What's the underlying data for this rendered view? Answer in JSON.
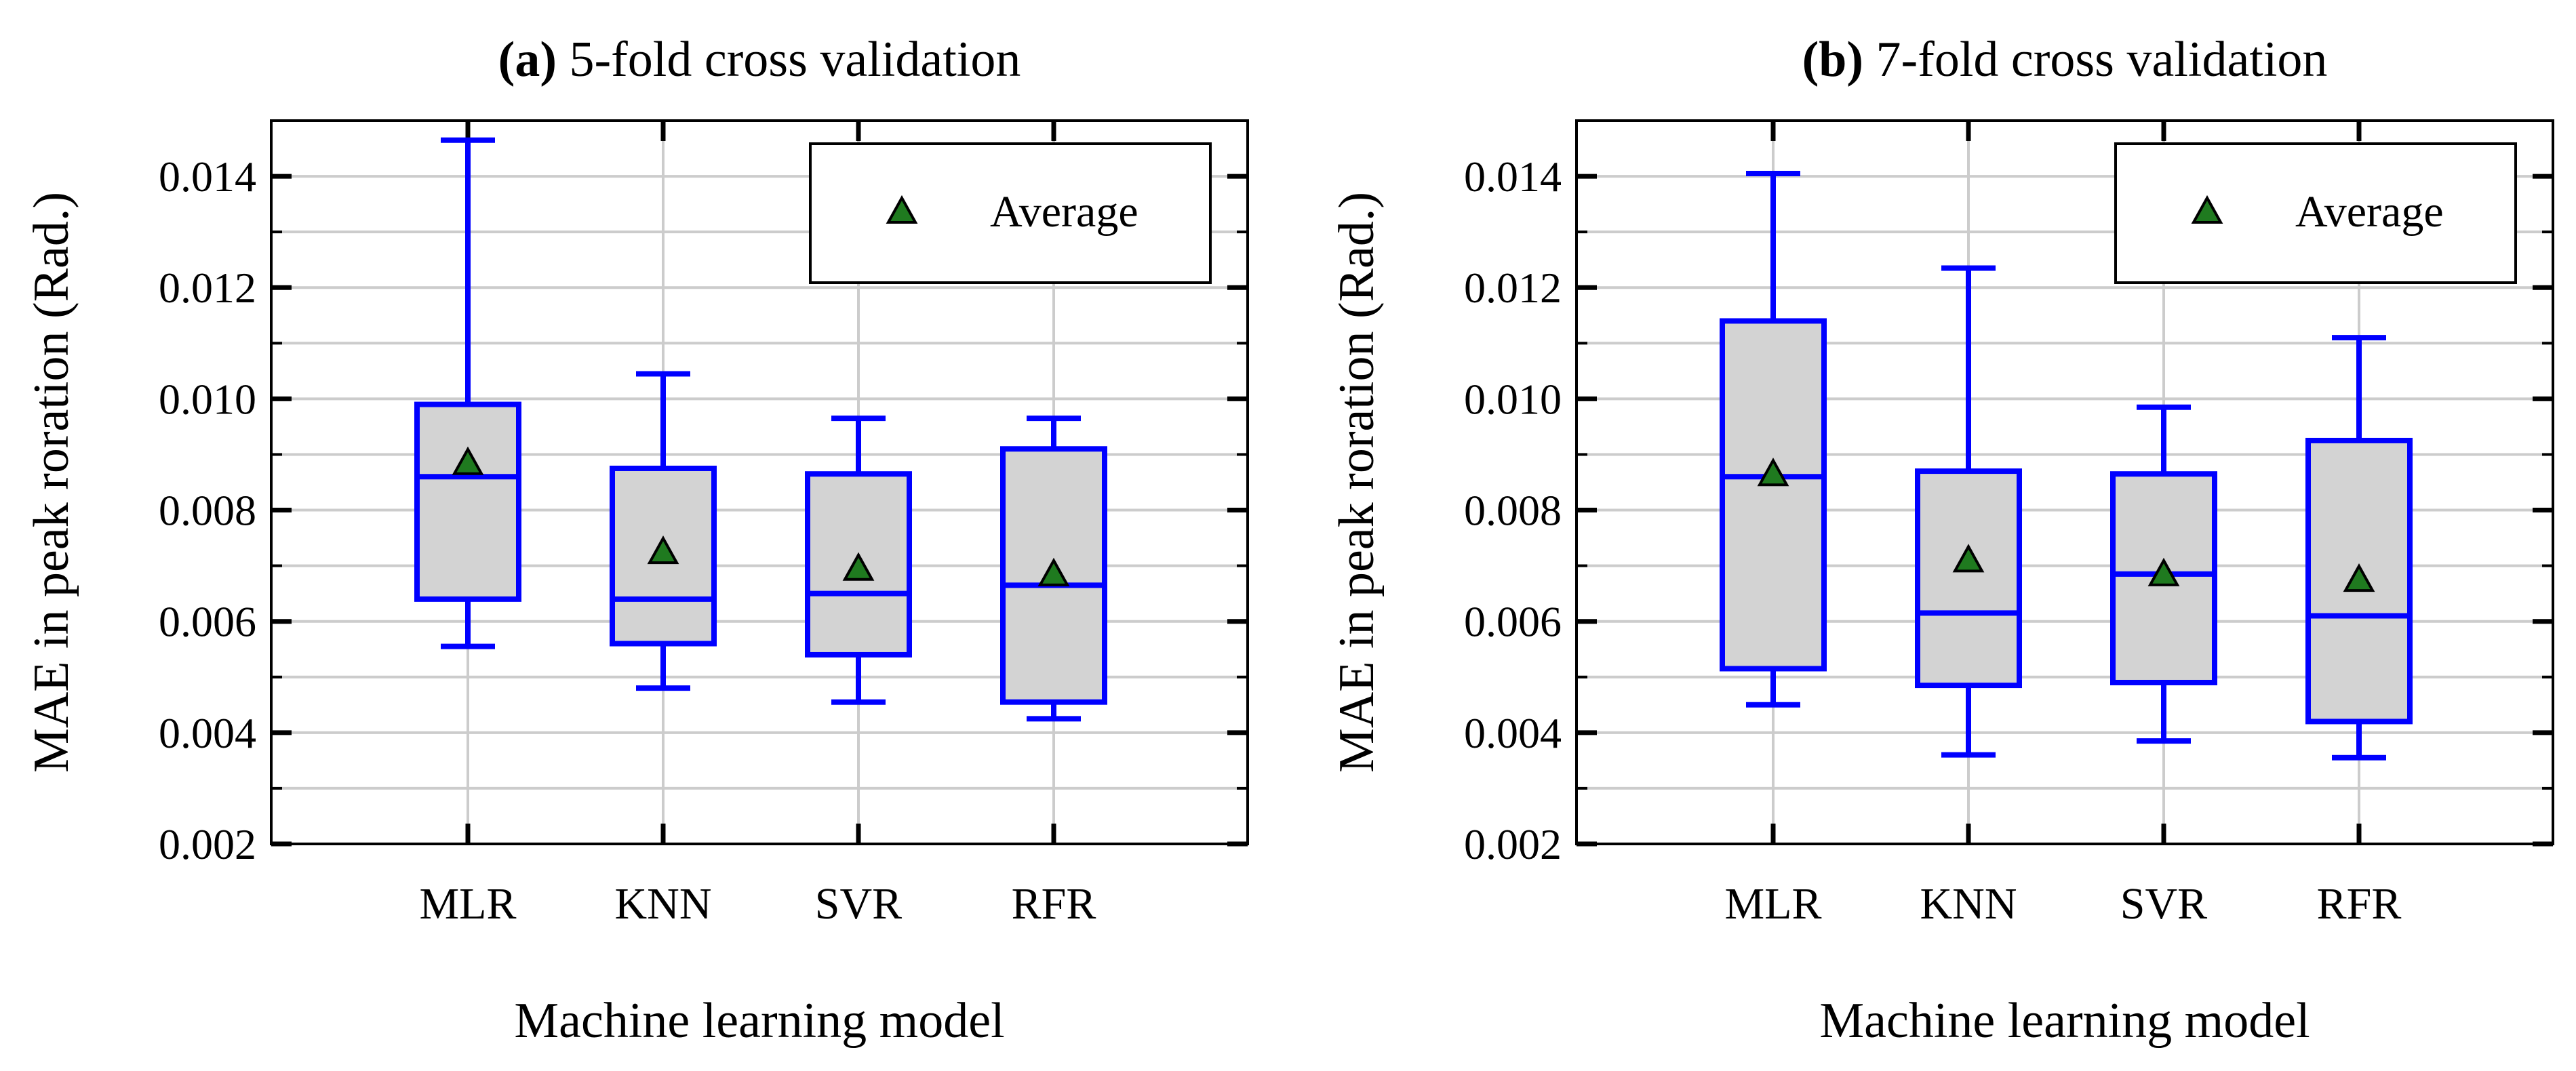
{
  "colors": {
    "box_fill": "#d3d3d3",
    "box_stroke": "#0000ff",
    "marker_fill": "#1f7a1f",
    "grid": "#cccccc",
    "frame": "#000000"
  },
  "legend": {
    "label": "Average",
    "marker_icon": "triangle-up-icon",
    "placement": "top-right"
  },
  "chart_data": [
    {
      "type": "box",
      "title_prefix": "(a)",
      "title": "5-fold cross validation",
      "xlabel": "Machine learning model",
      "ylabel": "MAE in peak roration (Rad.)",
      "ylim": [
        0.002,
        0.015
      ],
      "yticks": [
        "0.002",
        "0.004",
        "0.006",
        "0.008",
        "0.010",
        "0.012",
        "0.014"
      ],
      "grid": true,
      "categories": [
        "MLR",
        "KNN",
        "SVR",
        "RFR"
      ],
      "boxes": [
        {
          "name": "MLR",
          "whislo": 0.00555,
          "q1": 0.0064,
          "med": 0.0086,
          "q3": 0.0099,
          "whishi": 0.01465,
          "mean": 0.00885
        },
        {
          "name": "KNN",
          "whislo": 0.0048,
          "q1": 0.0056,
          "med": 0.0064,
          "q3": 0.00875,
          "whishi": 0.01045,
          "mean": 0.00725
        },
        {
          "name": "SVR",
          "whislo": 0.00455,
          "q1": 0.0054,
          "med": 0.0065,
          "q3": 0.00865,
          "whishi": 0.00965,
          "mean": 0.00695
        },
        {
          "name": "RFR",
          "whislo": 0.00425,
          "q1": 0.00455,
          "med": 0.00665,
          "q3": 0.0091,
          "whishi": 0.00965,
          "mean": 0.00685
        }
      ]
    },
    {
      "type": "box",
      "title_prefix": "(b)",
      "title": "7-fold cross validation",
      "xlabel": "Machine learning model",
      "ylabel": "MAE in peak roration (Rad.)",
      "ylim": [
        0.002,
        0.015
      ],
      "yticks": [
        "0.002",
        "0.004",
        "0.006",
        "0.008",
        "0.010",
        "0.012",
        "0.014"
      ],
      "grid": true,
      "categories": [
        "MLR",
        "KNN",
        "SVR",
        "RFR"
      ],
      "boxes": [
        {
          "name": "MLR",
          "whislo": 0.0045,
          "q1": 0.00515,
          "med": 0.0086,
          "q3": 0.0114,
          "whishi": 0.01405,
          "mean": 0.00865
        },
        {
          "name": "KNN",
          "whislo": 0.0036,
          "q1": 0.00485,
          "med": 0.00615,
          "q3": 0.0087,
          "whishi": 0.01235,
          "mean": 0.0071
        },
        {
          "name": "SVR",
          "whislo": 0.00385,
          "q1": 0.0049,
          "med": 0.00685,
          "q3": 0.00865,
          "whishi": 0.00985,
          "mean": 0.00685
        },
        {
          "name": "RFR",
          "whislo": 0.00355,
          "q1": 0.0042,
          "med": 0.0061,
          "q3": 0.00925,
          "whishi": 0.0111,
          "mean": 0.00675
        }
      ]
    }
  ]
}
